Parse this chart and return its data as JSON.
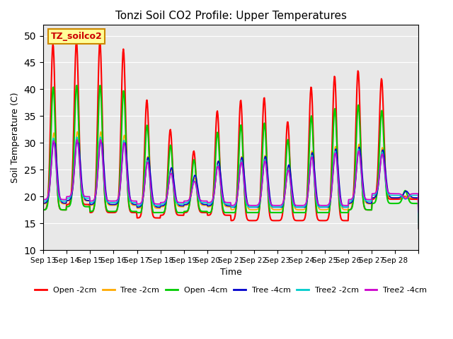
{
  "title": "Tonzi Soil CO2 Profile: Upper Temperatures",
  "xlabel": "Time",
  "ylabel": "Soil Temperature (C)",
  "ylim": [
    10,
    52
  ],
  "yticks": [
    10,
    15,
    20,
    25,
    30,
    35,
    40,
    45,
    50
  ],
  "background_color": "#e8e8e8",
  "fig_background": "#ffffff",
  "watermark_text": "TZ_soilco2",
  "watermark_bg": "#ffff99",
  "watermark_border": "#cc8800",
  "series_order": [
    "Open -2cm",
    "Tree -2cm",
    "Open -4cm",
    "Tree -4cm",
    "Tree2 -2cm",
    "Tree2 -4cm"
  ],
  "series_colors": [
    "#ff0000",
    "#ffaa00",
    "#00cc00",
    "#0000cc",
    "#00cccc",
    "#cc00cc"
  ],
  "series_lw": [
    1.5,
    1.2,
    1.5,
    1.2,
    1.2,
    1.2
  ],
  "xtick_labels": [
    "Sep 13",
    "Sep 14",
    "Sep 15",
    "Sep 16",
    "Sep 17",
    "Sep 18",
    "Sep 19",
    "Sep 20",
    "Sep 21",
    "Sep 22",
    "Sep 23",
    "Sep 24",
    "Sep 25",
    "Sep 26",
    "Sep 27",
    "Sep 28"
  ],
  "n_days": 16,
  "pts_per_day": 48,
  "open2cm_peaks": [
    48.5,
    49.0,
    49.0,
    47.5,
    38.0,
    32.5,
    28.5,
    36.0,
    38.0,
    38.5,
    34.0,
    40.5,
    42.5,
    43.5,
    42.0,
    20.0
  ],
  "open2cm_mins": [
    17.5,
    18.5,
    17.0,
    17.0,
    16.0,
    16.5,
    17.0,
    16.5,
    15.5,
    15.5,
    15.5,
    15.5,
    15.5,
    17.5,
    19.5,
    19.5
  ],
  "open2cm_peak_phase": 0.42,
  "open2cm_sharpness": 4.5,
  "tree2cm_scale": 0.45,
  "tree2cm_base": 12.0,
  "open4cm_scale": 0.68,
  "open4cm_base": 7.5,
  "tree4cm_scale": 0.28,
  "tree4cm_base": 14.5,
  "tree2_2cm_scale": 0.42,
  "tree2_2cm_base": 12.5,
  "tree2_4cm_scale": 0.38,
  "tree2_4cm_base": 13.0
}
